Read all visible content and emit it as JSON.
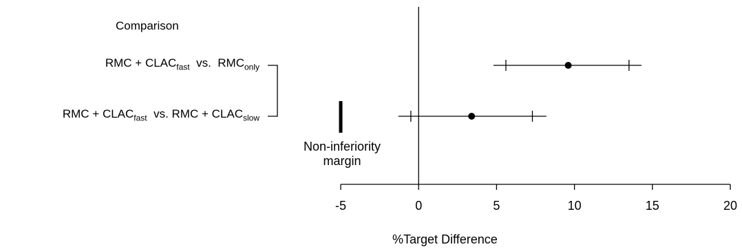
{
  "chart_data": {
    "type": "forest",
    "column_header": "Comparison",
    "xlabel": "%Target Difference",
    "xlim": [
      -5,
      20
    ],
    "xticks": [
      -5,
      0,
      5,
      10,
      15,
      20
    ],
    "annotation": "Non-inferiority margin",
    "annotation_lines": [
      "Non-inferiority",
      "margin"
    ],
    "margin_value": -5,
    "rows": [
      {
        "label_parts": [
          {
            "text": "RMC + CLAC",
            "sub": "fast"
          },
          {
            "text": "  vs.  RMC",
            "sub": "only"
          }
        ],
        "estimate": 9.6,
        "ci_inner": [
          5.6,
          13.5
        ],
        "ci_outer": [
          4.8,
          14.3
        ]
      },
      {
        "label_parts": [
          {
            "text": "RMC + CLAC",
            "sub": "fast"
          },
          {
            "text": "  vs. RMC + CLAC",
            "sub": "slow"
          }
        ],
        "estimate": 3.4,
        "ci_inner": [
          -0.5,
          7.3
        ],
        "ci_outer": [
          -1.3,
          8.2
        ]
      }
    ]
  }
}
